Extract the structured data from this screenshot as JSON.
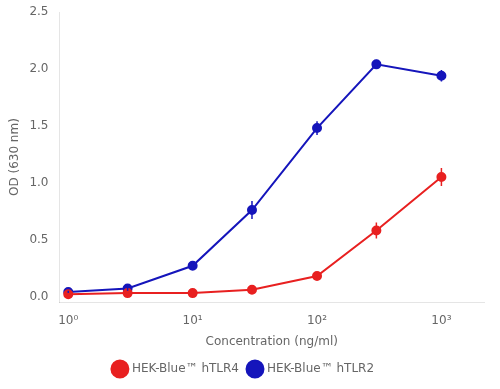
{
  "chart_data": {
    "type": "line",
    "x": [
      1.0,
      3.0,
      10.0,
      30.0,
      100.0,
      300.0,
      1000.0
    ],
    "series": [
      {
        "name": "HEK-Blue™ hTLR4",
        "color": "#e82020",
        "values": [
          0.02,
          0.03,
          0.03,
          0.06,
          0.18,
          0.58,
          1.05
        ],
        "yerr": [
          0.01,
          0.01,
          0.01,
          0.02,
          0.02,
          0.07,
          0.08
        ]
      },
      {
        "name": "HEK-Blue™ hTLR2",
        "color": "#1515bb",
        "values": [
          0.04,
          0.07,
          0.27,
          0.76,
          1.48,
          2.04,
          1.94
        ],
        "yerr": [
          0.01,
          0.02,
          0.03,
          0.08,
          0.06,
          0.04,
          0.05
        ]
      }
    ],
    "xlabel": "Concentration (ng/ml)",
    "ylabel": "OD (630 nm)",
    "xlim": [
      0.85,
      2200
    ],
    "ylim": [
      -0.05,
      2.5
    ],
    "xticks": [
      {
        "value": 1,
        "label": "10⁰"
      },
      {
        "value": 10,
        "label": "10¹"
      },
      {
        "value": 100,
        "label": "10²"
      },
      {
        "value": 1000,
        "label": "10³"
      }
    ],
    "yticks": [
      {
        "value": 0,
        "label": "0.0"
      },
      0.5,
      {
        "value": 1,
        "label": "1.0"
      },
      1.5,
      {
        "value": 2,
        "label": "2.0"
      },
      2.5
    ],
    "log": "x",
    "grid": false,
    "legend": "bottom",
    "marker": "circle"
  }
}
